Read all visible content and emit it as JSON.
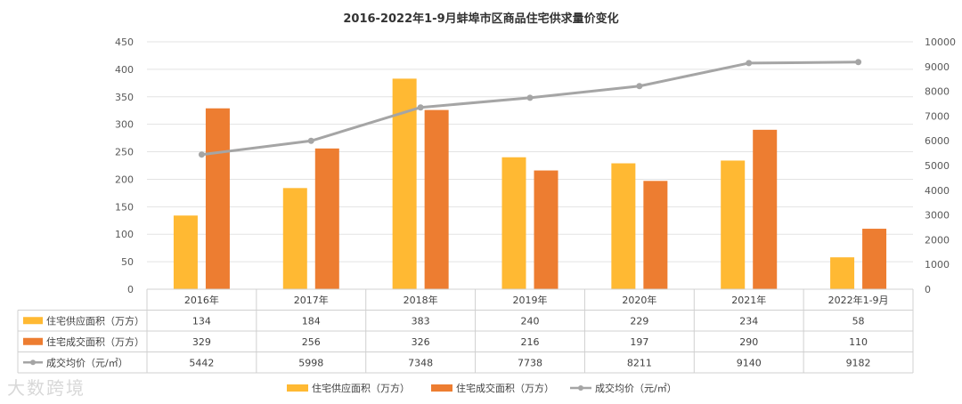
{
  "chart_data": {
    "type": "bar",
    "title": "2016-2022年1-9月蚌埠市区商品住宅供求量价变化",
    "categories": [
      "2016年",
      "2017年",
      "2018年",
      "2019年",
      "2020年",
      "2021年",
      "2022年1-9月"
    ],
    "series": [
      {
        "name": "住宅供应面积（万方）",
        "type": "bar",
        "axis": "left",
        "color": "#FFB933",
        "values": [
          134,
          184,
          383,
          240,
          229,
          234,
          58
        ]
      },
      {
        "name": "住宅成交面积（万方）",
        "type": "bar",
        "axis": "left",
        "color": "#ED7D31",
        "values": [
          329,
          256,
          326,
          216,
          197,
          290,
          110
        ]
      },
      {
        "name": "成交均价（元/㎡）",
        "type": "line",
        "axis": "right",
        "color": "#A5A5A5",
        "values": [
          5442,
          5998,
          7348,
          7738,
          8211,
          9140,
          9182
        ]
      }
    ],
    "ylim_left": [
      0,
      450
    ],
    "ytick_step_left": 50,
    "ylim_right": [
      0,
      10000
    ],
    "ytick_step_right": 1000,
    "legend_position": "bottom",
    "data_table": true
  },
  "watermark": "大数跨境"
}
